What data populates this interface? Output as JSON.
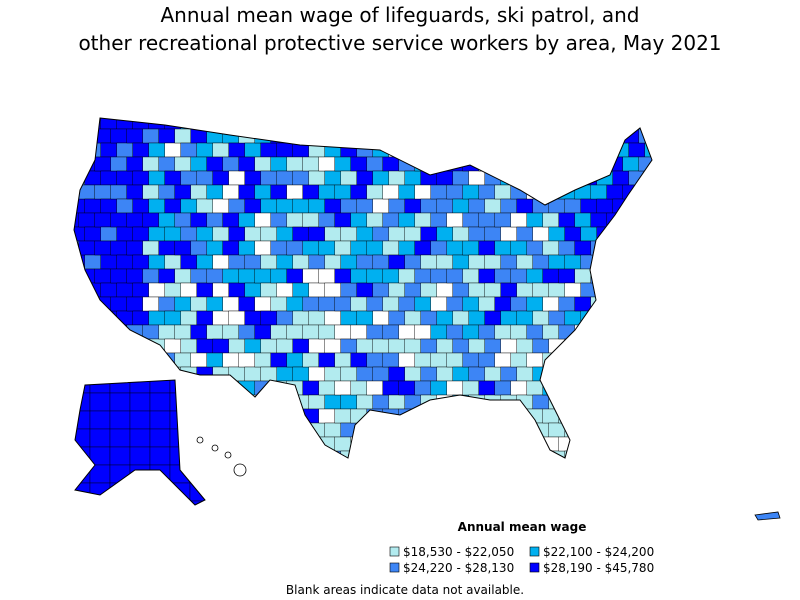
{
  "title_lines": [
    "Annual mean wage of lifeguards, ski patrol, and",
    "other recreational protective service workers by area, May 2021"
  ],
  "legend": {
    "title": "Annual mean wage",
    "items": [
      {
        "label": "$18,530 - $22,050",
        "color": "#b2ebef"
      },
      {
        "label": "$22,100 - $24,200",
        "color": "#00b0f0"
      },
      {
        "label": "$24,220 - $28,130",
        "color": "#3d85f5"
      },
      {
        "label": "$28,190 - $45,780",
        "color": "#0000ff"
      }
    ]
  },
  "note": "Blank areas indicate data not available."
}
